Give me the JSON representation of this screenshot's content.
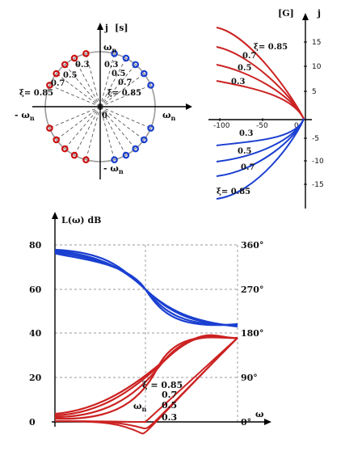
{
  "s_plane": {
    "axis_imag": "j",
    "axis_label": "[s]",
    "wn_top": "ω",
    "wn_top_sub": "n",
    "wn_right": "ω",
    "wn_right_sub": "n",
    "wn_left": "- ω",
    "wn_left_sub": "n",
    "wn_bottom": "- ω",
    "wn_bottom_sub": "n",
    "origin": "0",
    "xi_left": [
      "0.3",
      "0.5",
      "0.7",
      "ξ= 0.85"
    ],
    "xi_right": [
      "0.3",
      "0.5",
      "0.7",
      "ξ= 0.85"
    ],
    "colors": {
      "poles_left": "#cc1111",
      "poles_right": "#1a3fd1",
      "circle": "#999999"
    }
  },
  "g_plane": {
    "axis_label": "[G]",
    "axis_imag": "j",
    "upper_labels": [
      "ξ= 0.85",
      "0.7",
      "0.5",
      "0.3"
    ],
    "lower_labels": [
      "0.3",
      "0.5",
      "0.7",
      "ξ= 0.85"
    ],
    "x_ticks": [
      "-100",
      "-50",
      "0"
    ],
    "y_ticks_pos": [
      "15",
      "10",
      "5"
    ],
    "y_ticks_neg": [
      "-5",
      "-10",
      "-15"
    ],
    "colors": {
      "upper": "#cc2222",
      "lower": "#1a3fd1"
    }
  },
  "bode": {
    "y_label": "L(ω)  dB",
    "y_ticks": [
      "80",
      "60",
      "40",
      "20",
      "0"
    ],
    "right_ticks": [
      "360°",
      "270°",
      "180°",
      "90°",
      "0°"
    ],
    "x_label": "ω",
    "wn_label": "ω",
    "wn_sub": "n",
    "xi_labels": [
      "ξ = 0.85",
      "0.7",
      "0.5",
      "0.3"
    ],
    "colors": {
      "magnitude": "#cc2222",
      "phase": "#1a3fd1"
    }
  }
}
